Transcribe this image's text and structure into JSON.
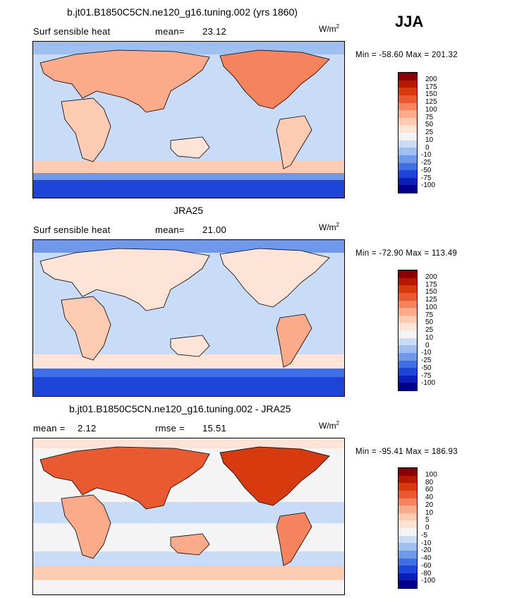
{
  "season_label": "JJA",
  "panels": [
    {
      "title": "b.jt01.B1850C5CN.ne120_g16.tuning.002 (yrs 1860)",
      "left_label": "Surf sensible heat",
      "stat1_label": "mean=",
      "stat1_value": "23.12",
      "stat2_label": "",
      "stat2_value": "",
      "units_base": "W/m",
      "units_exp": "2",
      "min_max": "Min = -58.60 Max = 201.32",
      "colorbar": {
        "labels": [
          "200",
          "175",
          "150",
          "125",
          "100",
          "75",
          "50",
          "25",
          "10",
          "0",
          "-10",
          "-25",
          "-50",
          "-75",
          "-100"
        ],
        "colors": [
          "#8b0000",
          "#b51a00",
          "#d83a10",
          "#ea5a30",
          "#f5845e",
          "#fbaa8a",
          "#fdcbb2",
          "#fee4d6",
          "#f4f4f4",
          "#c8dcf8",
          "#9ebff0",
          "#6f98ea",
          "#3f6fe6",
          "#1f45d8",
          "#0a1fb8",
          "#00008c"
        ]
      },
      "chart_data": {
        "type": "heatmap",
        "title": "b.jt01.B1850C5CN.ne120_g16.tuning.002 (yrs 1860)",
        "variable": "Surf sensible heat",
        "mean": 23.12,
        "min": -58.6,
        "max": 201.32,
        "units": "W/m2",
        "levels": [
          -100,
          -75,
          -50,
          -25,
          -10,
          0,
          10,
          25,
          50,
          75,
          100,
          125,
          150,
          175,
          200
        ]
      }
    },
    {
      "title": "JRA25",
      "left_label": "Surf sensible heat",
      "stat1_label": "mean=",
      "stat1_value": "21.00",
      "stat2_label": "",
      "stat2_value": "",
      "units_base": "W/m",
      "units_exp": "2",
      "min_max": "Min = -72.90 Max = 113.49",
      "colorbar": {
        "labels": [
          "200",
          "175",
          "150",
          "125",
          "100",
          "75",
          "50",
          "25",
          "10",
          "0",
          "-10",
          "-25",
          "-50",
          "-75",
          "-100"
        ],
        "colors": [
          "#8b0000",
          "#b51a00",
          "#d83a10",
          "#ea5a30",
          "#f5845e",
          "#fbaa8a",
          "#fdcbb2",
          "#fee4d6",
          "#f4f4f4",
          "#c8dcf8",
          "#9ebff0",
          "#6f98ea",
          "#3f6fe6",
          "#1f45d8",
          "#0a1fb8",
          "#00008c"
        ]
      },
      "chart_data": {
        "type": "heatmap",
        "title": "JRA25",
        "variable": "Surf sensible heat",
        "mean": 21.0,
        "min": -72.9,
        "max": 113.49,
        "units": "W/m2",
        "levels": [
          -100,
          -75,
          -50,
          -25,
          -10,
          0,
          10,
          25,
          50,
          75,
          100,
          125,
          150,
          175,
          200
        ]
      }
    },
    {
      "title": "b.jt01.B1850C5CN.ne120_g16.tuning.002 - JRA25",
      "left_label": "",
      "stat1_label": "mean =",
      "stat1_value": "2.12",
      "stat2_label": "rmse =",
      "stat2_value": "15.51",
      "units_base": "W/m",
      "units_exp": "2",
      "min_max": "Min = -95.41 Max = 186.93",
      "colorbar": {
        "labels": [
          "100",
          "80",
          "60",
          "40",
          "20",
          "10",
          "5",
          "0",
          "-5",
          "-10",
          "-20",
          "-40",
          "-60",
          "-80",
          "-100"
        ],
        "colors": [
          "#8b0000",
          "#b51a00",
          "#d83a10",
          "#ea5a30",
          "#f5845e",
          "#fbaa8a",
          "#fdcbb2",
          "#fee4d6",
          "#f4f4f4",
          "#c8dcf8",
          "#9ebff0",
          "#6f98ea",
          "#3f6fe6",
          "#1f45d8",
          "#0a1fb8",
          "#00008c"
        ]
      },
      "chart_data": {
        "type": "heatmap",
        "title": "b.jt01.B1850C5CN.ne120_g16.tuning.002 - JRA25",
        "mean": 2.12,
        "rmse": 15.51,
        "min": -95.41,
        "max": 186.93,
        "units": "W/m2",
        "levels": [
          -100,
          -80,
          -60,
          -40,
          -20,
          -10,
          -5,
          0,
          5,
          10,
          20,
          40,
          60,
          80,
          100
        ]
      }
    }
  ]
}
